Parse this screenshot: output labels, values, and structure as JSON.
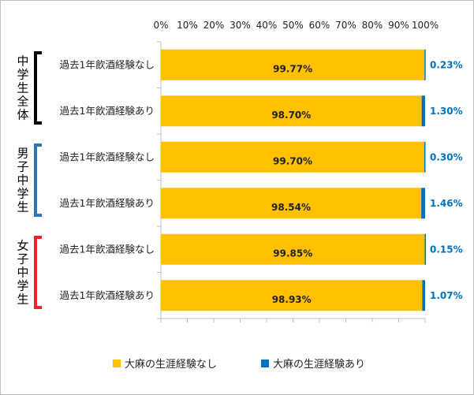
{
  "chart_data": {
    "type": "bar",
    "orientation": "horizontal",
    "stacked": true,
    "stacked_percent": true,
    "title": "",
    "xlabel": "",
    "ylabel": "",
    "xlim": [
      0,
      100
    ],
    "x_ticks": [
      "0%",
      "10%",
      "20%",
      "30%",
      "40%",
      "50%",
      "60%",
      "70%",
      "80%",
      "90%",
      "100%"
    ],
    "x_axis_position": "top",
    "grid": false,
    "legend_position": "bottom",
    "groups": [
      {
        "label": "中学生全体",
        "color": "#000000"
      },
      {
        "label": "男子中学生",
        "color": "#2e75b6"
      },
      {
        "label": "女子中学生",
        "color": "#e8262a"
      }
    ],
    "categories": [
      "過去1年飲酒経験なし",
      "過去1年飲酒経験あり",
      "過去1年飲酒経験なし",
      "過去1年飲酒経験あり",
      "過去1年飲酒経験なし",
      "過去1年飲酒経験あり"
    ],
    "category_groups": [
      0,
      0,
      1,
      1,
      2,
      2
    ],
    "series": [
      {
        "name": "大麻の生涯経験なし",
        "color": "#ffc000",
        "values": [
          99.77,
          98.7,
          99.7,
          98.54,
          99.85,
          98.93
        ],
        "labels": [
          "99.77%",
          "98.70%",
          "99.70%",
          "98.54%",
          "99.85%",
          "98.93%"
        ]
      },
      {
        "name": "大麻の生涯経験あり",
        "color": "#0070c0",
        "values": [
          0.23,
          1.3,
          0.3,
          1.46,
          0.15,
          1.07
        ],
        "labels": [
          "0.23%",
          "1.30%",
          "0.30%",
          "1.46%",
          "0.15%",
          "1.07%"
        ]
      }
    ]
  }
}
